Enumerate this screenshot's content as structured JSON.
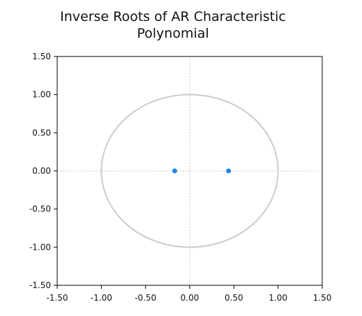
{
  "chart_data": {
    "type": "scatter",
    "title_lines": [
      "Inverse Roots of AR Characteristic",
      "Polynomial"
    ],
    "xlim": [
      -1.5,
      1.5
    ],
    "ylim": [
      -1.5,
      1.5
    ],
    "x_ticks": [
      -1.5,
      -1.0,
      -0.5,
      0.0,
      0.5,
      1.0,
      1.5
    ],
    "y_ticks": [
      1.5,
      1.0,
      0.5,
      0.0,
      -0.5,
      -1.0,
      -1.5
    ],
    "x_tick_labels": [
      "-1.50",
      "-1.00",
      "-0.50",
      "0.00",
      "0.50",
      "1.00",
      "1.50"
    ],
    "y_tick_labels": [
      "1.50",
      "1.00",
      "0.50",
      "0.00",
      "-0.50",
      "-1.00",
      "-1.50"
    ],
    "unit_circle": {
      "radius": 1.0,
      "color": "#cccccc"
    },
    "reference_lines": {
      "x": 0,
      "y": 0,
      "style": "dotted",
      "color": "#c8c8c8"
    },
    "series": [
      {
        "points": [
          {
            "x": -0.17,
            "y": 0.0
          },
          {
            "x": 0.44,
            "y": 0.0
          }
        ],
        "color": "#1e88e5"
      }
    ]
  }
}
